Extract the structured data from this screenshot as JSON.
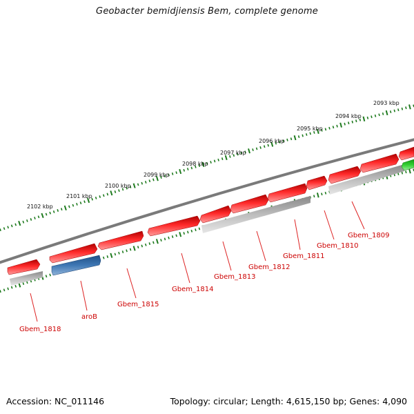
{
  "title": "Geobacter bemidjiensis Bem, complete genome",
  "footer": {
    "accession": "Accession: NC_011146",
    "summary": "Topology: circular; Length: 4,615,150 bp; Genes: 4,090"
  },
  "ruler": {
    "labels": [
      "2102 kbp",
      "2101 kbp",
      "2100 kbp",
      "2099 kbp",
      "2098 kbp",
      "2097 kbp",
      "2096 kbp",
      "2095 kbp",
      "2094 kbp",
      "2093 kbp"
    ]
  },
  "colors": {
    "backbone": "#7a7a7a",
    "tick": "#1e7a1e",
    "cds_red": "#e31414",
    "cds_blue": "#3a6ea5",
    "cds_green": "#2fc52f",
    "gene_gray": "#b8b8b8",
    "label": "#cc0000"
  },
  "genes": [
    {
      "label": "Gbem_1818",
      "color": "red"
    },
    {
      "label": "aroB",
      "color": "blue"
    },
    {
      "label": "Gbem_1815",
      "color": "red"
    },
    {
      "label": "Gbem_1814",
      "color": "red"
    },
    {
      "label": "Gbem_1813",
      "color": "red"
    },
    {
      "label": "Gbem_1812",
      "color": "red"
    },
    {
      "label": "Gbem_1811",
      "color": "red"
    },
    {
      "label": "Gbem_1810",
      "color": "red"
    },
    {
      "label": "Gbem_1809",
      "color": "red"
    }
  ]
}
